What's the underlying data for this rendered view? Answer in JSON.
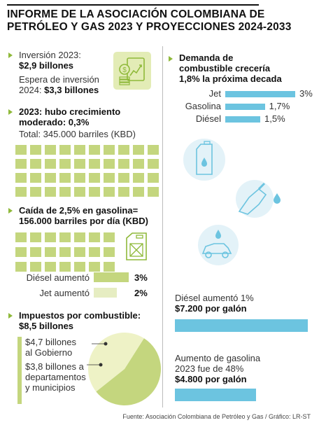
{
  "title_line1": "INFORME DE LA ASOCIACIÓN COLOMBIANA DE",
  "title_line2": "PETRÓLEO Y GAS 2023 Y PROYECCIONES 2024-2033",
  "inversion": {
    "label": "Inversión 2023:",
    "value": "$2,9 billones",
    "espera_line1": "Espera de inversión",
    "espera_line2_prefix": "2024: ",
    "espera_value": "$3,3 billones"
  },
  "produccion": {
    "line1": "2023: hubo crecimiento",
    "line2": "moderado: 0,3%",
    "total": "Total: 345.000 barriles (KBD)"
  },
  "gasolina": {
    "prefix": "Caída de ",
    "pct": "2,5%",
    "suffix": " en gasolina=",
    "line2": "156.000 barriles por día (KBD)"
  },
  "aumentos": [
    {
      "label": "Diésel aumentó",
      "value": "3%",
      "num": 3,
      "color": "#c4d67e"
    },
    {
      "label": "Jet aumentó",
      "value": "2%",
      "num": 2,
      "color": "#e6edc2"
    }
  ],
  "impuestos": {
    "line1": "Impuestos por combustible:",
    "line2": "$8,5 billones",
    "gob_value": "$4,7 billones",
    "gob_line2": "al Gobierno",
    "dep_value": "$3,8 billones",
    "dep_suffix": " a",
    "dep_line2": "departamentos",
    "dep_line3": "y municipios"
  },
  "demanda": {
    "line1": "Demanda de",
    "line2": "combustible crecería",
    "line3": "1,8% la próxima decada"
  },
  "chart_data": [
    {
      "type": "bar",
      "orientation": "horizontal",
      "title": "Demanda de combustible crecería 1,8% la próxima decada",
      "categories": [
        "Jet",
        "Gasolina",
        "Diésel"
      ],
      "values": [
        3,
        1.7,
        1.5
      ],
      "value_labels": [
        "3%",
        "1,7%",
        "1,5%"
      ],
      "color": "#6cc4e0"
    },
    {
      "type": "pie",
      "title": "Impuestos por combustible: $8,5 billones",
      "categories": [
        "$4,7 billones al Gobierno",
        "$3,8 billones a departamentos y municipios"
      ],
      "values": [
        4.7,
        3.8
      ],
      "colors": [
        "#c4d67e",
        "#eef2c6"
      ]
    }
  ],
  "diesel_galon": {
    "line1": "Diésel aumentó 1%",
    "line2": "$7.200 por galón"
  },
  "gasolina_galon": {
    "line1": "Aumento de gasolina",
    "line2": "2023 fue de 48%",
    "line3": "$4.800 por galón"
  },
  "source": "Fuente: Asociación Colombiana de Petróleo y Gas / Gráfico: LR-ST",
  "colors": {
    "green": "#c4d67e",
    "light_green": "#dde8a9",
    "blue": "#6cc4e0",
    "accent": "#8fb93a"
  },
  "icons": [
    "money-growth-icon",
    "jerrycan-icon",
    "fuel-pump-nozzle-icon",
    "car-fuel-icon"
  ]
}
